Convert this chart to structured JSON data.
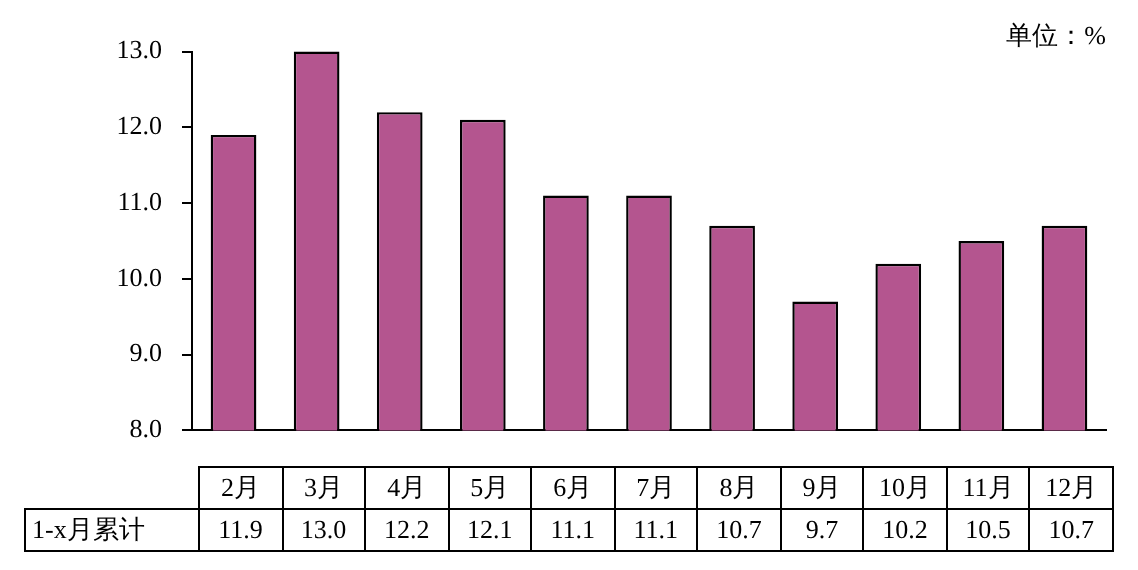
{
  "chart_data": {
    "type": "bar",
    "categories": [
      "2月",
      "3月",
      "4月",
      "5月",
      "6月",
      "7月",
      "8月",
      "9月",
      "10月",
      "11月",
      "12月"
    ],
    "series": [
      {
        "name": "1-x月累计",
        "color": "#b4558f",
        "values": [
          11.9,
          13.0,
          12.2,
          12.1,
          11.1,
          11.1,
          10.7,
          9.7,
          10.2,
          10.5,
          10.7
        ],
        "value_labels": [
          "11.9",
          "13.0",
          "12.2",
          "12.1",
          "11.1",
          "11.1",
          "10.7",
          "9.7",
          "10.2",
          "10.5",
          "10.7"
        ]
      }
    ],
    "ylim": [
      8,
      13
    ],
    "yticks": [
      {
        "value": 8,
        "label": "8.0"
      },
      {
        "value": 9,
        "label": "9.0"
      },
      {
        "value": 10,
        "label": "10.0"
      },
      {
        "value": 11,
        "label": "11.0"
      },
      {
        "value": 12,
        "label": "12.0"
      },
      {
        "value": 13,
        "label": "13.0"
      }
    ],
    "grid": false,
    "legend": false,
    "annotations": [
      "单位：%"
    ]
  }
}
